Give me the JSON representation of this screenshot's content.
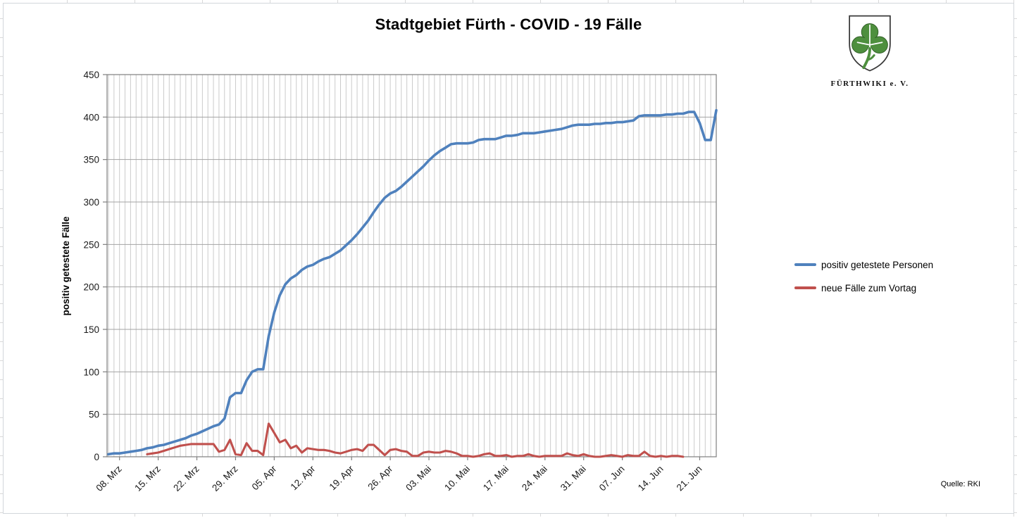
{
  "header": {
    "logo_caption": "FÜRTHWIKI e. V."
  },
  "source": {
    "label": "Quelle: RKI"
  },
  "chart_data": {
    "type": "line",
    "title": "Stadtgebiet Fürth - COVID - 19 Fälle",
    "xlabel": "",
    "ylabel": "positiv getestete Fälle",
    "ylim": [
      0,
      450
    ],
    "ytick_interval": 50,
    "ytick_labels": [
      "0",
      "50",
      "100",
      "150",
      "200",
      "250",
      "300",
      "350",
      "400",
      "450"
    ],
    "x_unit": "day",
    "x_start": "06. Mrz",
    "x_tick_labels": [
      "08. Mrz",
      "15. Mrz",
      "22. Mrz",
      "29. Mrz",
      "05. Apr",
      "12. Apr",
      "19. Apr",
      "26. Apr",
      "03. Mai",
      "10. Mai",
      "17. Mai",
      "24. Mai",
      "31. Mai",
      "07. Jun",
      "14. Jun",
      "21. Jun"
    ],
    "x_tick_every_days": 7,
    "grid": {
      "vertical": "daily",
      "horizontal": "every 50"
    },
    "legend_position": "right",
    "colors": {
      "series1": "#4F81BD",
      "series2": "#C0504D"
    },
    "series": [
      {
        "name": "positiv getestete Personen",
        "color": "#4F81BD",
        "start_day_index": 0,
        "values": [
          3,
          4,
          4,
          5,
          6,
          7,
          8,
          10,
          11,
          13,
          14,
          16,
          18,
          20,
          22,
          25,
          27,
          30,
          33,
          36,
          38,
          45,
          70,
          75,
          75,
          90,
          100,
          103,
          103,
          142,
          170,
          190,
          203,
          210,
          214,
          220,
          224,
          226,
          230,
          233,
          235,
          239,
          243,
          249,
          255,
          262,
          270,
          278,
          288,
          297,
          305,
          310,
          313,
          318,
          324,
          330,
          336,
          342,
          349,
          355,
          360,
          364,
          368,
          369,
          369,
          369,
          370,
          373,
          374,
          374,
          374,
          376,
          378,
          378,
          379,
          381,
          381,
          381,
          382,
          383,
          384,
          385,
          386,
          388,
          390,
          391,
          391,
          391,
          392,
          392,
          393,
          393,
          394,
          394,
          395,
          396,
          401,
          402,
          402,
          402,
          402,
          403,
          403,
          404,
          404,
          406,
          406,
          393,
          373,
          373,
          408
        ]
      },
      {
        "name": "neue Fälle zum Vortag",
        "color": "#C0504D",
        "start_day_index": 7,
        "values": [
          3,
          4,
          5,
          7,
          9,
          11,
          13,
          14,
          15,
          15,
          15,
          15,
          15,
          6,
          8,
          20,
          3,
          2,
          16,
          7,
          7,
          2,
          39,
          28,
          17,
          20,
          10,
          13,
          5,
          10,
          9,
          8,
          8,
          7,
          5,
          4,
          6,
          8,
          9,
          7,
          14,
          14,
          8,
          2,
          8,
          9,
          7,
          6,
          1,
          1,
          5,
          6,
          5,
          5,
          7,
          6,
          4,
          1,
          1,
          0,
          1,
          3,
          4,
          1,
          1,
          2,
          0,
          1,
          1,
          3,
          1,
          0,
          1,
          1,
          1,
          1,
          4,
          2,
          1,
          3,
          1,
          0,
          0,
          1,
          2,
          1,
          0,
          2,
          1,
          1,
          6,
          1,
          0,
          1,
          0,
          1,
          1,
          0
        ]
      }
    ]
  }
}
